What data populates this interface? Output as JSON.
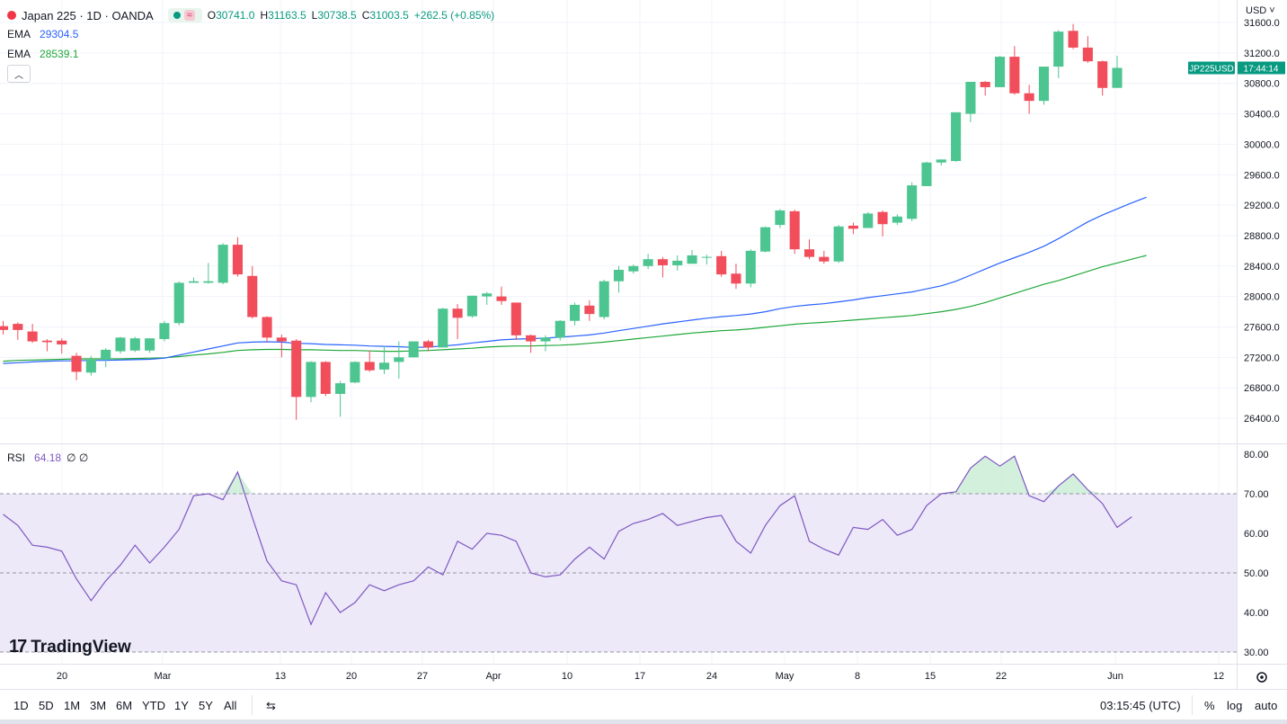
{
  "header": {
    "symbol_title": "Japan 225 · 1D · OANDA",
    "ohlc": [
      {
        "label": "O",
        "value": "30741.0"
      },
      {
        "label": "H",
        "value": "31163.5"
      },
      {
        "label": "L",
        "value": "30738.5"
      },
      {
        "label": "C",
        "value": "31003.5"
      }
    ],
    "change": "+262.5 (+0.85%)",
    "currency": "USD"
  },
  "indicators": {
    "ema_fast": {
      "label": "EMA",
      "value": "29304.5",
      "color": "#2962ff"
    },
    "ema_slow": {
      "label": "EMA",
      "value": "28539.1",
      "color": "#089981"
    },
    "rsi": {
      "label": "RSI",
      "value": "64.18",
      "extra": "∅ ∅",
      "color": "#7e57c2"
    }
  },
  "price_axis": {
    "ticks": [
      "31600.0",
      "31200.0",
      "30800.0",
      "30400.0",
      "30000.0",
      "29600.0",
      "29200.0",
      "28800.0",
      "28400.0",
      "28000.0",
      "27600.0",
      "27200.0",
      "26800.0",
      "26400.0"
    ],
    "symbol_badge": "JP225USD",
    "countdown": "17:44:14"
  },
  "rsi_axis": {
    "ticks": [
      "80.00",
      "70.00",
      "60.00",
      "50.00",
      "40.00",
      "30.00"
    ]
  },
  "time_axis": {
    "labels": [
      "20",
      "Mar",
      "13",
      "20",
      "27",
      "Apr",
      "10",
      "17",
      "24",
      "May",
      "8",
      "15",
      "22",
      "Jun",
      "12"
    ]
  },
  "toolbar": {
    "ranges": [
      "1D",
      "5D",
      "1M",
      "3M",
      "6M",
      "YTD",
      "1Y",
      "5Y",
      "All"
    ],
    "clock": "03:15:45 (UTC)",
    "percent": "%",
    "log": "log",
    "auto": "auto"
  },
  "logo": "TradingView",
  "colors": {
    "up": "#4cc590",
    "down": "#f14d5b",
    "ema_fast": "#2962ff",
    "ema_slow": "#1fa739",
    "rsi": "#7e57c2",
    "rsi_band": "#ede9f8",
    "badge": "#089981"
  },
  "chart_data": [
    {
      "type": "candlestick",
      "title": "Japan 225 · 1D · OANDA",
      "ylim": [
        26100,
        31750
      ],
      "candles": [
        {
          "o": 27610,
          "h": 27680,
          "l": 27500,
          "c": 27560
        },
        {
          "o": 27640,
          "h": 27660,
          "l": 27430,
          "c": 27560
        },
        {
          "o": 27540,
          "h": 27640,
          "l": 27390,
          "c": 27410
        },
        {
          "o": 27420,
          "h": 27440,
          "l": 27280,
          "c": 27400
        },
        {
          "o": 27420,
          "h": 27450,
          "l": 27250,
          "c": 27370
        },
        {
          "o": 27220,
          "h": 27260,
          "l": 26900,
          "c": 27010
        },
        {
          "o": 27000,
          "h": 27220,
          "l": 26960,
          "c": 27170
        },
        {
          "o": 27170,
          "h": 27320,
          "l": 27070,
          "c": 27300
        },
        {
          "o": 27280,
          "h": 27470,
          "l": 27250,
          "c": 27460
        },
        {
          "o": 27290,
          "h": 27470,
          "l": 27270,
          "c": 27450
        },
        {
          "o": 27290,
          "h": 27450,
          "l": 27260,
          "c": 27450
        },
        {
          "o": 27440,
          "h": 27680,
          "l": 27410,
          "c": 27650
        },
        {
          "o": 27650,
          "h": 28200,
          "l": 27620,
          "c": 28180
        },
        {
          "o": 28180,
          "h": 28250,
          "l": 28180,
          "c": 28200
        },
        {
          "o": 28180,
          "h": 28440,
          "l": 28170,
          "c": 28200
        },
        {
          "o": 28180,
          "h": 28700,
          "l": 28160,
          "c": 28680
        },
        {
          "o": 28680,
          "h": 28780,
          "l": 28260,
          "c": 28290
        },
        {
          "o": 28270,
          "h": 28400,
          "l": 27710,
          "c": 27730
        },
        {
          "o": 27730,
          "h": 27740,
          "l": 27400,
          "c": 27460
        },
        {
          "o": 27460,
          "h": 27500,
          "l": 27200,
          "c": 27410
        },
        {
          "o": 27420,
          "h": 27440,
          "l": 26380,
          "c": 26680
        },
        {
          "o": 26680,
          "h": 27150,
          "l": 26610,
          "c": 27140
        },
        {
          "o": 27140,
          "h": 27150,
          "l": 26690,
          "c": 26720
        },
        {
          "o": 26720,
          "h": 26890,
          "l": 26420,
          "c": 26860
        },
        {
          "o": 26870,
          "h": 27150,
          "l": 26860,
          "c": 27140
        },
        {
          "o": 27140,
          "h": 27290,
          "l": 27010,
          "c": 27030
        },
        {
          "o": 27040,
          "h": 27350,
          "l": 26980,
          "c": 27130
        },
        {
          "o": 27140,
          "h": 27410,
          "l": 26920,
          "c": 27200
        },
        {
          "o": 27200,
          "h": 27410,
          "l": 27210,
          "c": 27410
        },
        {
          "o": 27410,
          "h": 27430,
          "l": 27280,
          "c": 27330
        },
        {
          "o": 27330,
          "h": 27850,
          "l": 27330,
          "c": 27840
        },
        {
          "o": 27840,
          "h": 27900,
          "l": 27440,
          "c": 27720
        },
        {
          "o": 27740,
          "h": 28010,
          "l": 27720,
          "c": 28010
        },
        {
          "o": 28000,
          "h": 28060,
          "l": 27890,
          "c": 28040
        },
        {
          "o": 28000,
          "h": 28130,
          "l": 27890,
          "c": 27940
        },
        {
          "o": 27920,
          "h": 27920,
          "l": 27430,
          "c": 27490
        },
        {
          "o": 27490,
          "h": 27500,
          "l": 27260,
          "c": 27410
        },
        {
          "o": 27410,
          "h": 27490,
          "l": 27280,
          "c": 27460
        },
        {
          "o": 27460,
          "h": 27690,
          "l": 27420,
          "c": 27680
        },
        {
          "o": 27680,
          "h": 27920,
          "l": 27620,
          "c": 27890
        },
        {
          "o": 27880,
          "h": 27950,
          "l": 27680,
          "c": 27770
        },
        {
          "o": 27730,
          "h": 28220,
          "l": 27700,
          "c": 28200
        },
        {
          "o": 28200,
          "h": 28400,
          "l": 28050,
          "c": 28350
        },
        {
          "o": 28330,
          "h": 28420,
          "l": 28300,
          "c": 28400
        },
        {
          "o": 28400,
          "h": 28560,
          "l": 28360,
          "c": 28490
        },
        {
          "o": 28490,
          "h": 28520,
          "l": 28250,
          "c": 28410
        },
        {
          "o": 28410,
          "h": 28540,
          "l": 28340,
          "c": 28470
        },
        {
          "o": 28430,
          "h": 28610,
          "l": 28430,
          "c": 28540
        },
        {
          "o": 28520,
          "h": 28550,
          "l": 28420,
          "c": 28520
        },
        {
          "o": 28530,
          "h": 28600,
          "l": 28260,
          "c": 28290
        },
        {
          "o": 28300,
          "h": 28430,
          "l": 28100,
          "c": 28170
        },
        {
          "o": 28170,
          "h": 28620,
          "l": 28120,
          "c": 28600
        },
        {
          "o": 28590,
          "h": 28920,
          "l": 28580,
          "c": 28910
        },
        {
          "o": 28940,
          "h": 29150,
          "l": 28900,
          "c": 29130
        },
        {
          "o": 29120,
          "h": 29140,
          "l": 28560,
          "c": 28620
        },
        {
          "o": 28620,
          "h": 28750,
          "l": 28490,
          "c": 28520
        },
        {
          "o": 28520,
          "h": 28600,
          "l": 28430,
          "c": 28460
        },
        {
          "o": 28460,
          "h": 28940,
          "l": 28440,
          "c": 28920
        },
        {
          "o": 28930,
          "h": 28970,
          "l": 28820,
          "c": 28890
        },
        {
          "o": 28900,
          "h": 29110,
          "l": 28900,
          "c": 29090
        },
        {
          "o": 29110,
          "h": 29130,
          "l": 28790,
          "c": 28950
        },
        {
          "o": 28970,
          "h": 29080,
          "l": 28940,
          "c": 29050
        },
        {
          "o": 29020,
          "h": 29500,
          "l": 28990,
          "c": 29460
        },
        {
          "o": 29450,
          "h": 29770,
          "l": 29450,
          "c": 29760
        },
        {
          "o": 29760,
          "h": 29800,
          "l": 29720,
          "c": 29800
        },
        {
          "o": 29780,
          "h": 30420,
          "l": 29770,
          "c": 30420
        },
        {
          "o": 30400,
          "h": 30820,
          "l": 30290,
          "c": 30820
        },
        {
          "o": 30820,
          "h": 30830,
          "l": 30640,
          "c": 30750
        },
        {
          "o": 30750,
          "h": 31160,
          "l": 30760,
          "c": 31150
        },
        {
          "o": 31150,
          "h": 31290,
          "l": 30650,
          "c": 30670
        },
        {
          "o": 30670,
          "h": 30780,
          "l": 30400,
          "c": 30570
        },
        {
          "o": 30570,
          "h": 31020,
          "l": 30520,
          "c": 31020
        },
        {
          "o": 31020,
          "h": 31500,
          "l": 30870,
          "c": 31480
        },
        {
          "o": 31490,
          "h": 31580,
          "l": 31250,
          "c": 31270
        },
        {
          "o": 31270,
          "h": 31420,
          "l": 31070,
          "c": 31090
        },
        {
          "o": 31090,
          "h": 31100,
          "l": 30640,
          "c": 30740
        },
        {
          "o": 30741,
          "h": 31163.5,
          "l": 30738.5,
          "c": 31003.5
        }
      ],
      "series": [
        {
          "name": "EMA",
          "values": [
            27120,
            27130,
            27140,
            27150,
            27155,
            27155,
            27160,
            27160,
            27165,
            27170,
            27175,
            27190,
            27230,
            27270,
            27310,
            27350,
            27390,
            27400,
            27405,
            27400,
            27385,
            27380,
            27370,
            27365,
            27360,
            27350,
            27345,
            27340,
            27330,
            27335,
            27350,
            27365,
            27390,
            27410,
            27430,
            27440,
            27445,
            27455,
            27465,
            27480,
            27495,
            27520,
            27550,
            27580,
            27610,
            27640,
            27665,
            27690,
            27715,
            27735,
            27750,
            27770,
            27800,
            27840,
            27870,
            27890,
            27905,
            27930,
            27955,
            27985,
            28010,
            28035,
            28060,
            28100,
            28140,
            28200,
            28280,
            28360,
            28440,
            28510,
            28580,
            28660,
            28760,
            28870,
            28980,
            29070,
            29150,
            29230,
            29304.5
          ]
        },
        {
          "name": "EMA",
          "values": [
            27150,
            27160,
            27165,
            27170,
            27175,
            27180,
            27180,
            27180,
            27180,
            27185,
            27190,
            27195,
            27210,
            27230,
            27245,
            27265,
            27290,
            27300,
            27305,
            27305,
            27300,
            27300,
            27295,
            27290,
            27290,
            27285,
            27280,
            27280,
            27285,
            27290,
            27300,
            27310,
            27320,
            27335,
            27345,
            27350,
            27350,
            27355,
            27360,
            27370,
            27385,
            27400,
            27420,
            27440,
            27460,
            27480,
            27500,
            27520,
            27535,
            27550,
            27560,
            27575,
            27595,
            27615,
            27635,
            27650,
            27660,
            27675,
            27690,
            27705,
            27720,
            27735,
            27750,
            27775,
            27800,
            27830,
            27870,
            27920,
            27980,
            28040,
            28100,
            28160,
            28210,
            28270,
            28330,
            28390,
            28440,
            28490,
            28539.1
          ]
        }
      ]
    },
    {
      "type": "line",
      "title": "RSI",
      "ylim": [
        27,
        82
      ],
      "bands": {
        "overbought": 70,
        "middle": 50,
        "oversold": 30
      },
      "series": [
        {
          "name": "RSI",
          "values": [
            64.8,
            62.0,
            57.0,
            56.5,
            55.5,
            48.5,
            43.0,
            48.0,
            52.0,
            57.0,
            52.5,
            56.5,
            61.0,
            69.5,
            70.0,
            68.5,
            75.5,
            64.0,
            53.0,
            48.0,
            47.0,
            37.0,
            45.0,
            40.0,
            42.5,
            47.0,
            45.5,
            47.0,
            48.0,
            51.5,
            49.5,
            58.0,
            56.0,
            60.0,
            59.5,
            58.0,
            50.0,
            49.0,
            49.5,
            53.5,
            56.5,
            53.5,
            60.5,
            62.5,
            63.5,
            65.0,
            62.0,
            63.0,
            64.0,
            64.5,
            58.0,
            55.0,
            62.0,
            67.0,
            69.5,
            58.0,
            56.0,
            54.5,
            61.5,
            61.0,
            63.5,
            59.5,
            61.0,
            67.0,
            70.0,
            70.5,
            76.5,
            79.5,
            77.0,
            79.5,
            69.5,
            68.0,
            72.0,
            75.0,
            71.0,
            67.5,
            61.5,
            64.18
          ]
        }
      ]
    }
  ]
}
